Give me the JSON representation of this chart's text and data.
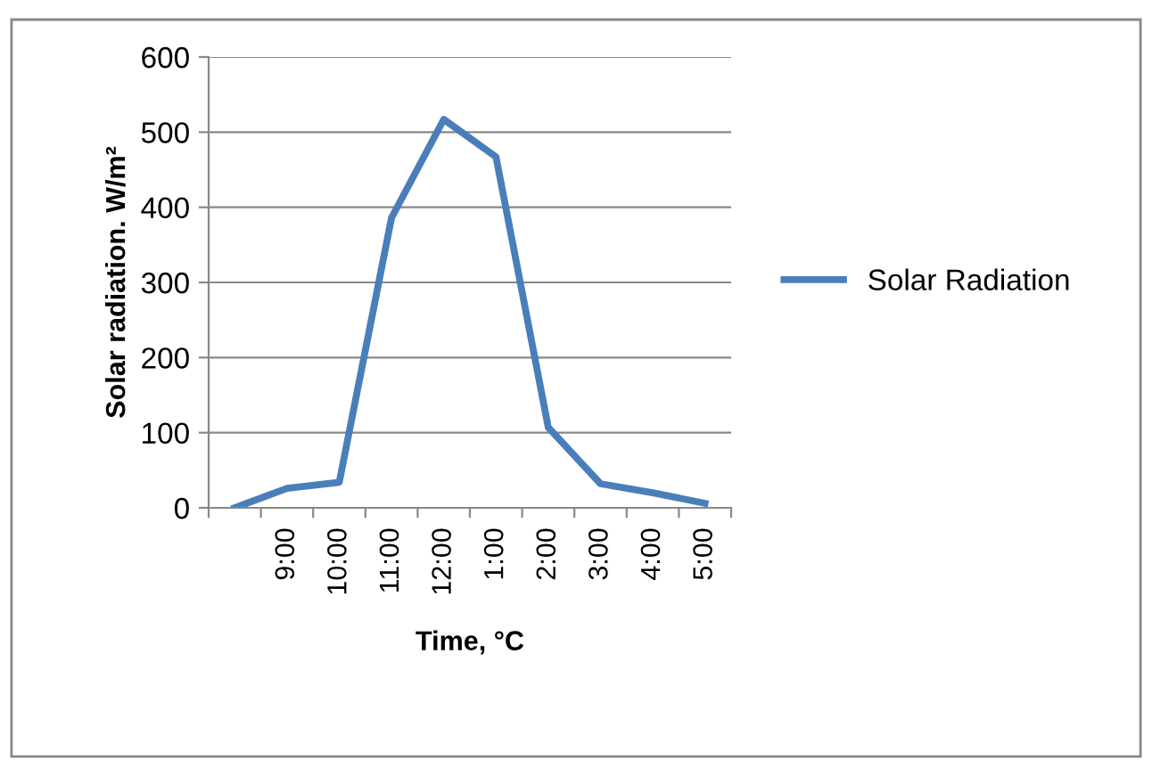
{
  "chart_data": {
    "type": "line",
    "categories": [
      null,
      "9:00",
      "10:00",
      "11:00",
      "12:00",
      "1:00",
      "2:00",
      "3:00",
      "4:00",
      "5:00"
    ],
    "series": [
      {
        "name": "Solar Radiation",
        "color": "#4a7ebb",
        "values": [
          0,
          26,
          34,
          386,
          517,
          467,
          107,
          32,
          20,
          6
        ]
      }
    ],
    "xlabel": "Time, °C",
    "ylabel": "Solar radiation. W/m²",
    "ylim": [
      0,
      600
    ],
    "yticks": [
      0,
      100,
      200,
      300,
      400,
      500,
      600
    ],
    "grid": "y",
    "legend": "right",
    "marker": "none",
    "line_style": "solid"
  }
}
